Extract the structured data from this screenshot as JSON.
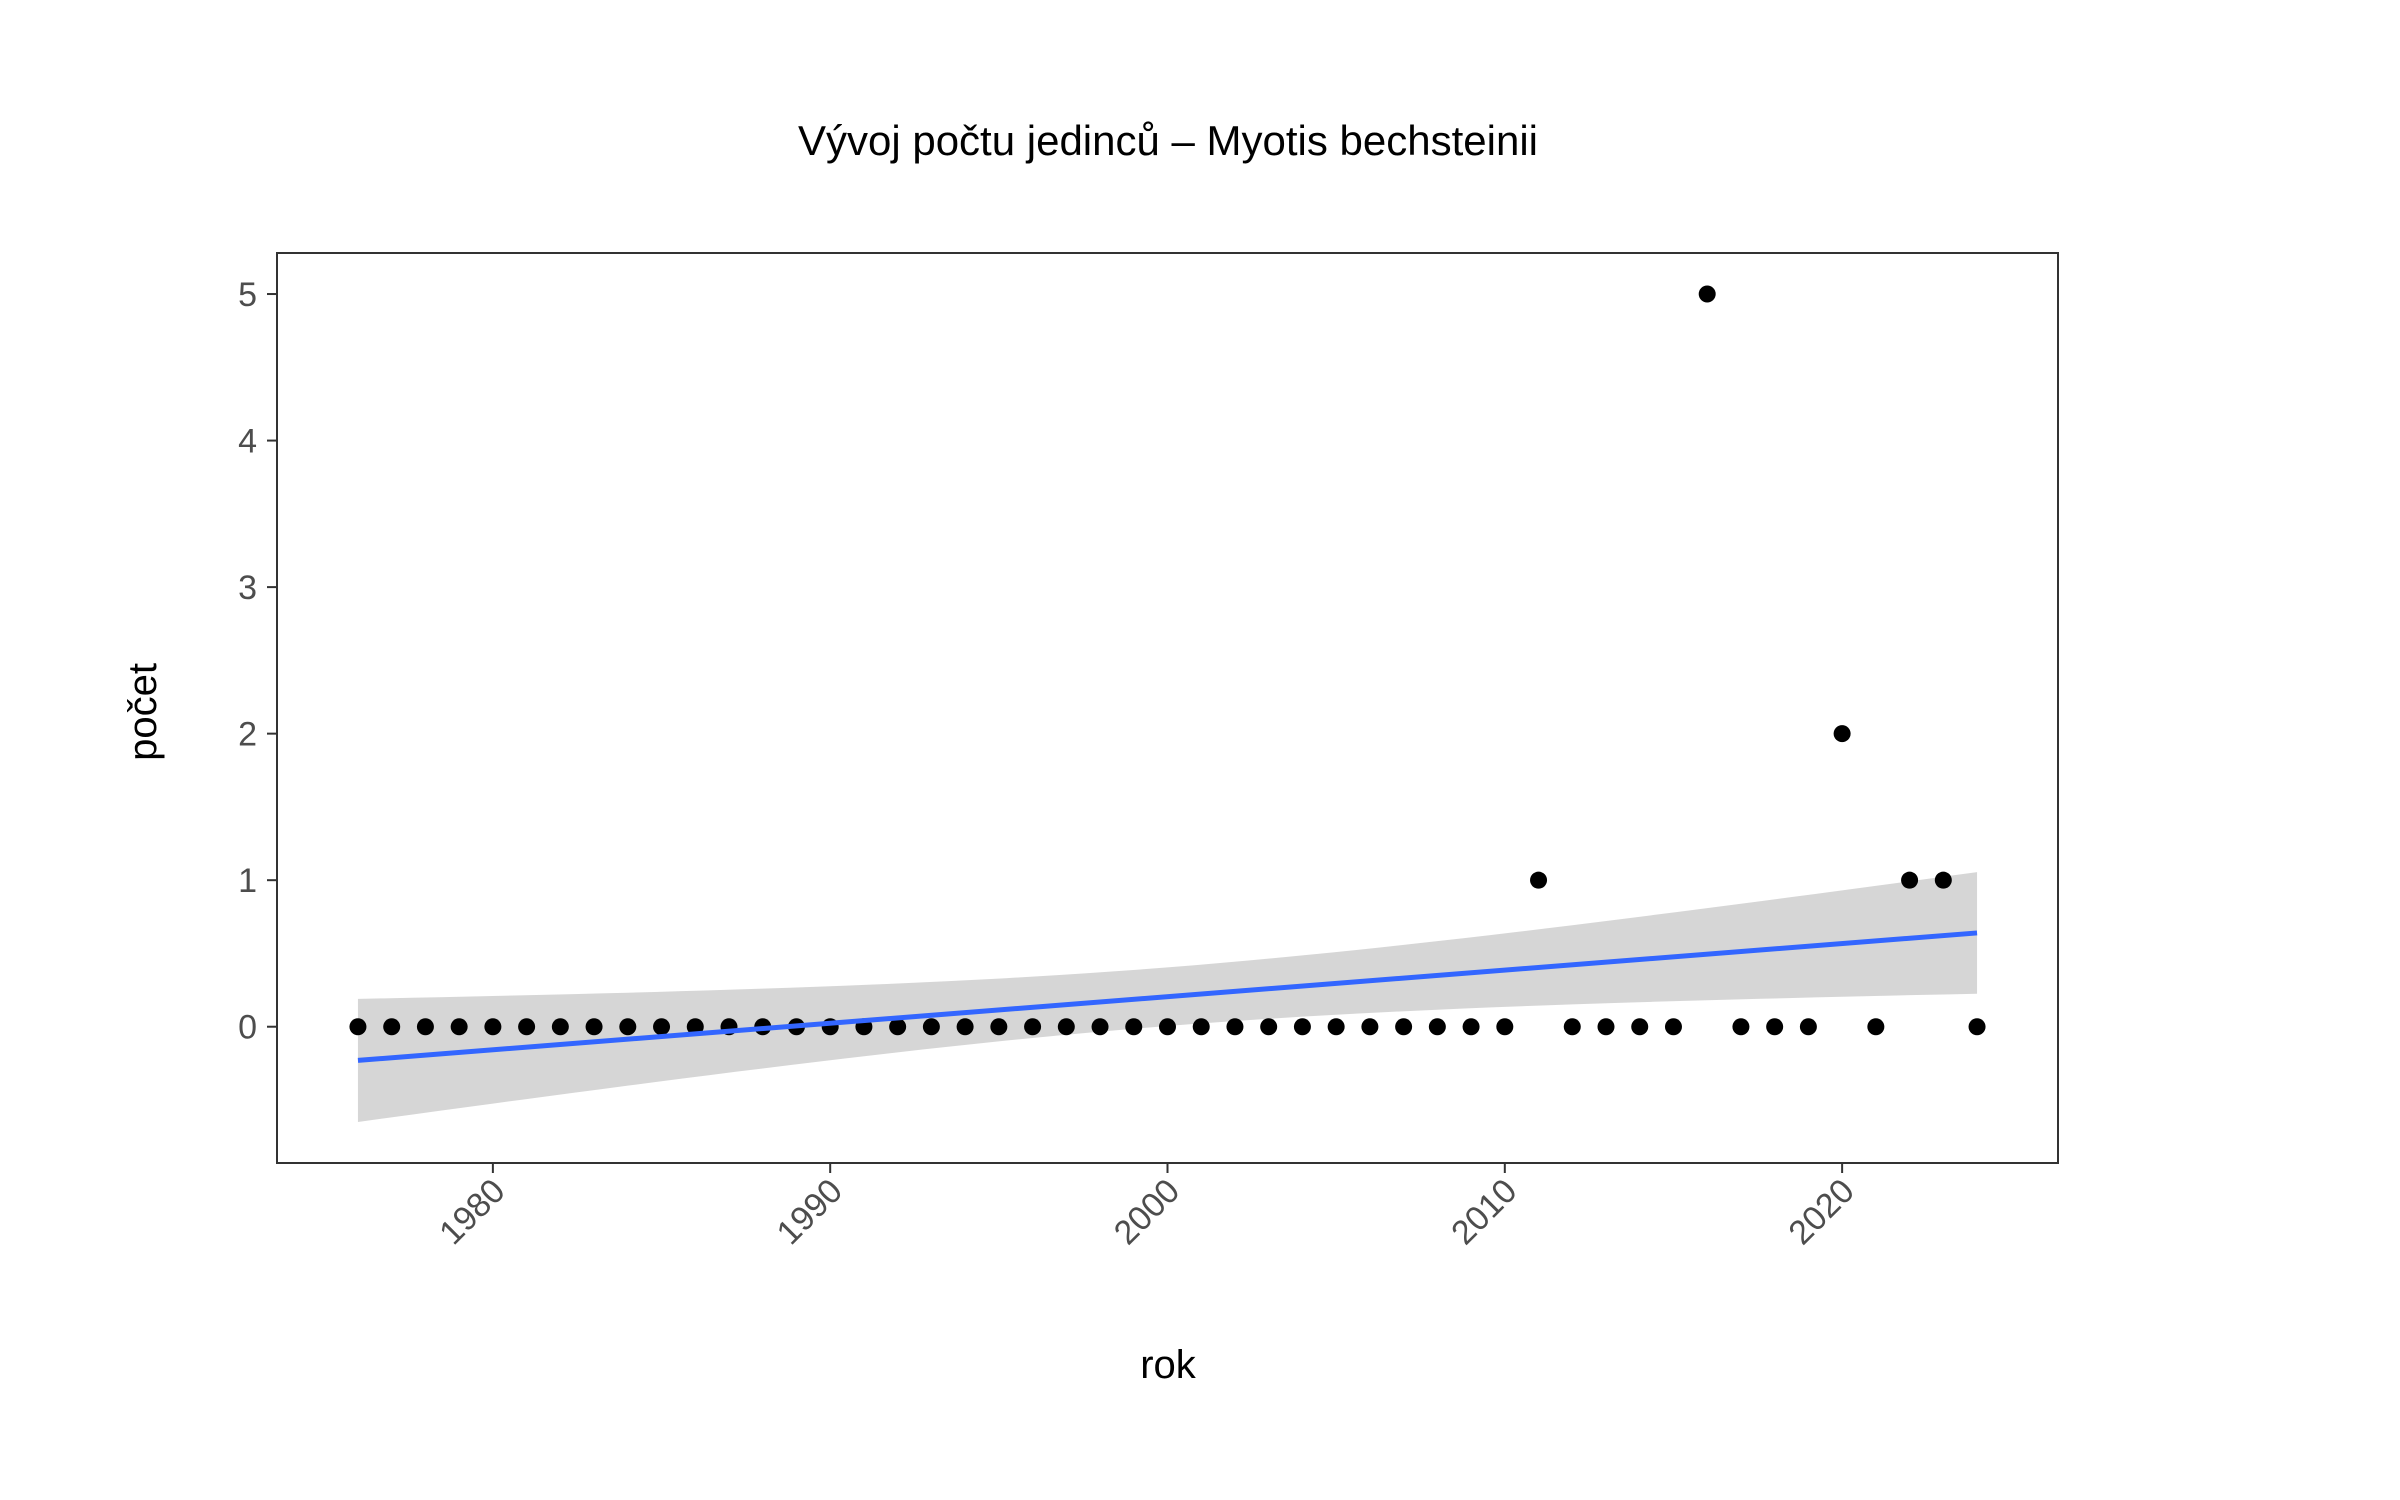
{
  "chart_data": {
    "type": "scatter",
    "title": "Vývoj počtu jedinců – Myotis bechsteinii",
    "xlabel": "rok",
    "ylabel": "počet",
    "xlim": [
      1973.6,
      2026.4
    ],
    "ylim": [
      -0.93,
      5.28
    ],
    "x_ticks": [
      1980,
      1990,
      2000,
      2010,
      2020
    ],
    "y_ticks": [
      0,
      1,
      2,
      3,
      4,
      5
    ],
    "grid": false,
    "legend": "none",
    "points": {
      "x": [
        1976,
        1977,
        1978,
        1979,
        1980,
        1981,
        1982,
        1983,
        1984,
        1985,
        1986,
        1987,
        1988,
        1989,
        1990,
        1991,
        1992,
        1993,
        1994,
        1995,
        1996,
        1997,
        1998,
        1999,
        2000,
        2001,
        2002,
        2003,
        2004,
        2005,
        2006,
        2007,
        2008,
        2009,
        2010,
        2011,
        2012,
        2013,
        2014,
        2015,
        2016,
        2017,
        2018,
        2019,
        2020,
        2021,
        2022,
        2023,
        2024
      ],
      "y": [
        0,
        0,
        0,
        0,
        0,
        0,
        0,
        0,
        0,
        0,
        0,
        0,
        0,
        0,
        0,
        0,
        0,
        0,
        0,
        0,
        0,
        0,
        0,
        0,
        0,
        0,
        0,
        0,
        0,
        0,
        0,
        0,
        0,
        0,
        0,
        1,
        0,
        0,
        0,
        0,
        5,
        0,
        0,
        0,
        2,
        0,
        1,
        1,
        0
      ]
    },
    "trend": {
      "method": "linear",
      "x": [
        1976,
        2024
      ],
      "y": [
        -0.23,
        0.64
      ],
      "ci_lower": [
        -0.65,
        0.22
      ],
      "ci_upper": [
        0.19,
        1.05
      ],
      "x_center": 2000,
      "center_halfwidth": 0.2
    },
    "colors": {
      "point": "#000000",
      "trend_line": "#3366ff",
      "ribbon": "#cccccc",
      "panel_border": "#333333",
      "tick_label": "#4d4d4d"
    }
  }
}
